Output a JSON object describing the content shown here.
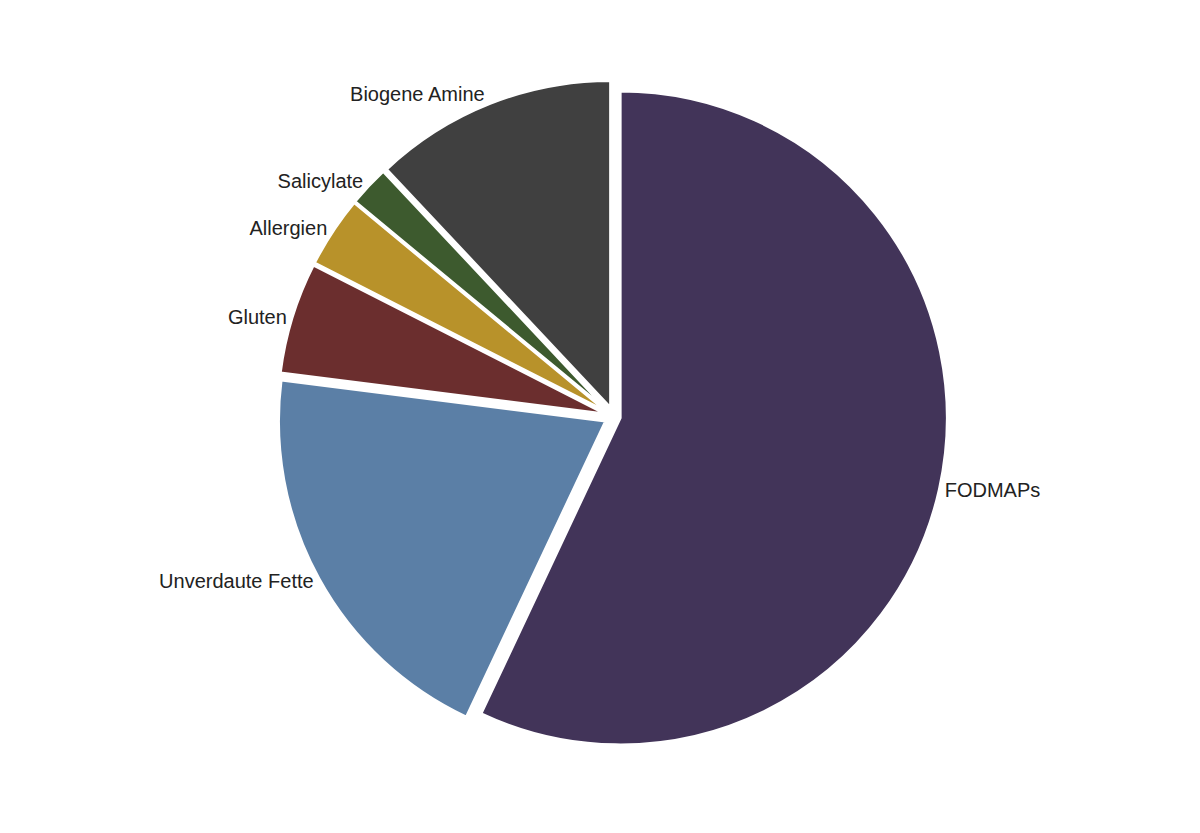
{
  "chart_data": {
    "type": "pie",
    "categories": [
      "FODMAPs",
      "Unverdaute Fette",
      "Gluten",
      "Allergien",
      "Salicylate",
      "Biogene Amine"
    ],
    "values": [
      57,
      20,
      5.5,
      3.5,
      2.0,
      12
    ],
    "colors": [
      "#423459",
      "#5b7fa6",
      "#6b2e2e",
      "#b8922a",
      "#3d5a2e",
      "#404040"
    ]
  }
}
